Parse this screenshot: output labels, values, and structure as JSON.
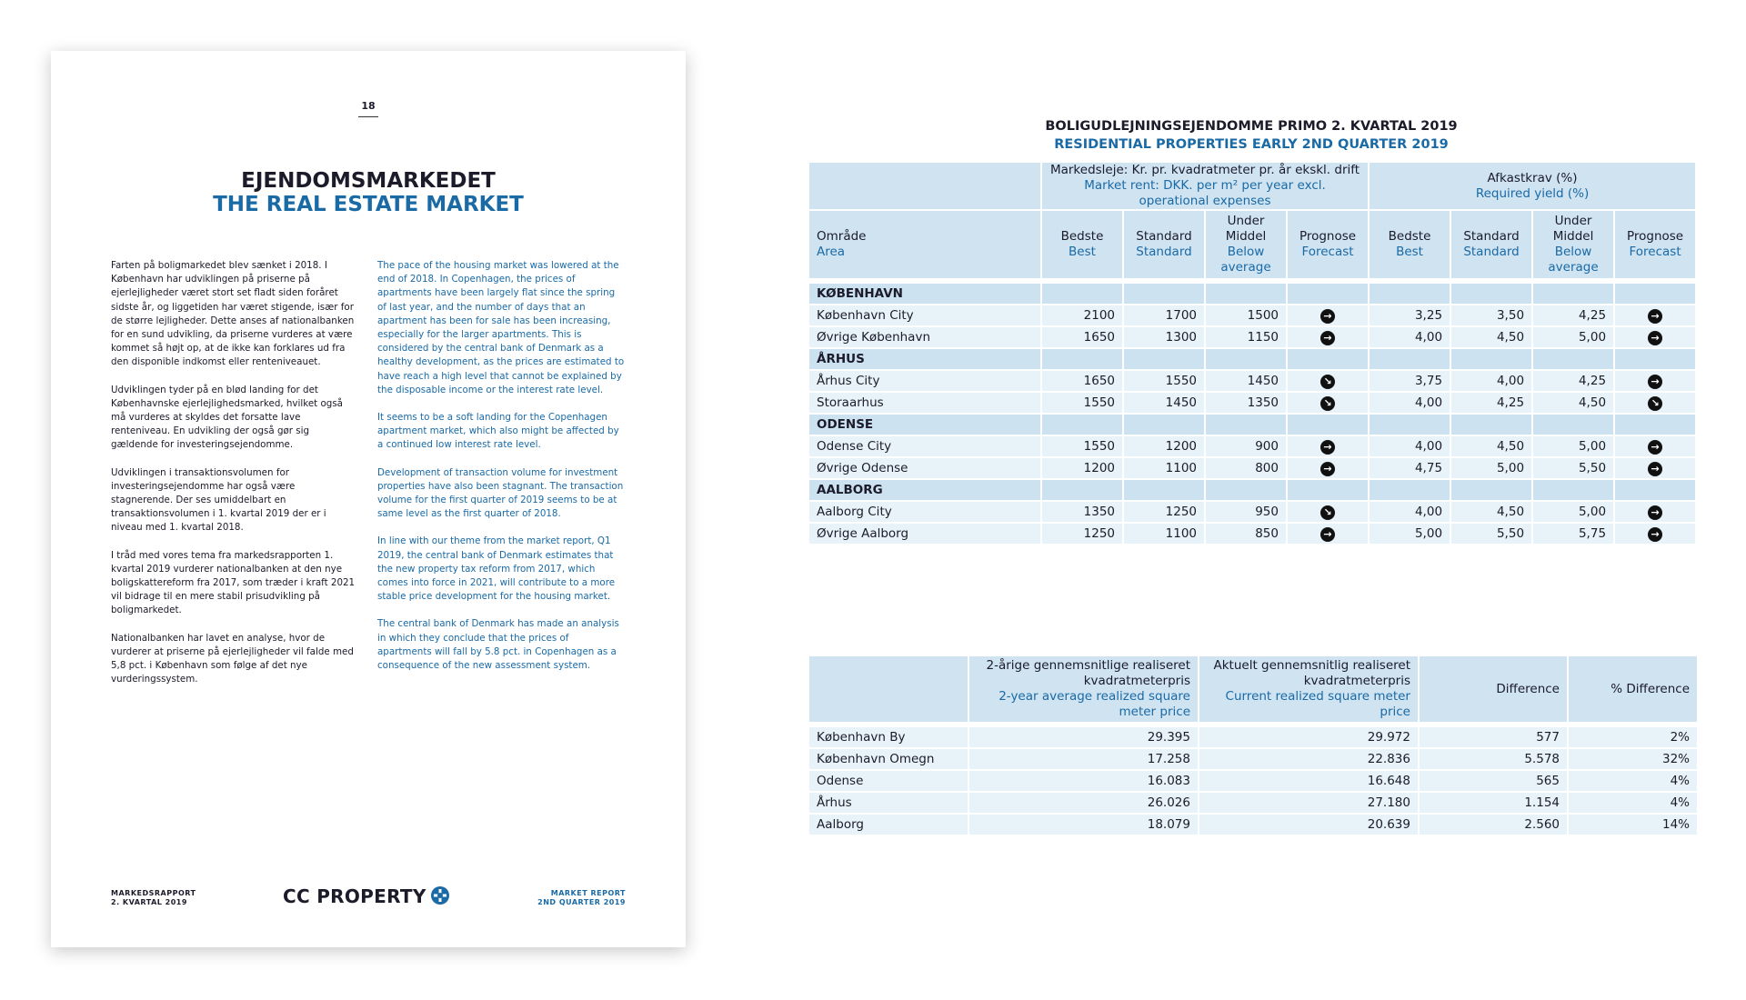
{
  "page": {
    "number": "18",
    "title": "EJENDOMSMARKEDET",
    "subtitle": "THE REAL ESTATE MARKET",
    "danish": [
      "Farten på boligmarkedet blev sænket i 2018. I København har udviklingen på priserne på ejerlejligheder været stort set fladt siden foråret sidste år, og liggetiden har været stigende, især for de større lejligheder. Dette anses af nationalbanken for en sund udvikling, da priserne vurderes at være kommet så højt op, at de ikke kan forklares ud fra den disponible indkomst eller renteniveauet.",
      "Udviklingen tyder på en blød landing for det Københavnske ejerlejlighedsmarked, hvilket også må vurderes at skyldes det forsatte lave renteniveau. En udvikling der også gør sig gældende for investeringsejendomme.",
      "Udviklingen i transaktionsvolumen for investeringsejendomme har også være stagnerende. Der ses umiddelbart en transaktionsvolumen i 1. kvartal 2019 der er i niveau med 1. kvartal 2018.",
      "I tråd med vores tema fra markedsrapporten 1. kvartal 2019 vurderer nationalbanken at den nye boligskattereform fra 2017, som træder i kraft 2021 vil bidrage til en mere stabil prisudvikling på boligmarkedet.",
      "Nationalbanken har lavet en analyse, hvor de vurderer at priserne på ejerlejligheder vil falde med 5,8 pct. i København som følge af det nye vurderingssystem."
    ],
    "english": [
      "The pace of the housing market was lowered at the end of 2018. In Copenhagen, the prices of apartments have been largely flat since the spring of last year, and the number of days that an apartment has been for sale has been increasing, especially for the larger apartments. This is considered by the central bank of Denmark as a healthy development, as the prices are estimated to have reach a high level that cannot be explained by the disposable income or the interest rate level.",
      "It seems to be a soft landing for the Copenhagen apartment market, which also might be affected by a continued low interest rate level.",
      "Development of transaction volume for investment properties have also been stagnant. The transaction volume for the first quarter of 2019 seems to be at same level as the first quarter of 2018.",
      "In line with our theme from the market report, Q1 2019, the central bank of Denmark estimates that the new property tax reform from 2017, which comes into force in 2021, will contribute to a more stable price development for the housing market.",
      "The central bank of Denmark has made an analysis in which they conclude that the prices of apartments will fall by 5.8 pct. in Copenhagen as a consequence of the new assessment system."
    ],
    "footer": {
      "left": [
        "MARKEDSRAPPORT",
        "2. KVARTAL 2019"
      ],
      "logo": "CC PROPERTY",
      "right": [
        "MARKET REPORT",
        "2ND QUARTER 2019"
      ]
    }
  },
  "table1": {
    "title": "BOLIGUDLEJNINGSEJENDOMME PRIMO 2. KVARTAL 2019",
    "subtitle": "RESIDENTIAL PROPERTIES EARLY 2ND QUARTER 2019",
    "groups": [
      {
        "da": "Markedsleje: Kr. pr. kvadratmeter pr. år ekskl. drift",
        "en": "Market rent: DKK. per m² per year excl. operational expenses"
      },
      {
        "da": "Afkastkrav (%)",
        "en": "Required yield (%)"
      }
    ],
    "columns": [
      {
        "da": "Område",
        "en": "Area"
      },
      {
        "da": "Bedste",
        "en": "Best"
      },
      {
        "da": "Standard",
        "en": "Standard"
      },
      {
        "da": "Under Middel",
        "en": "Below average"
      },
      {
        "da": "Prognose",
        "en": "Forecast"
      },
      {
        "da": "Bedste",
        "en": "Best"
      },
      {
        "da": "Standard",
        "en": "Standard"
      },
      {
        "da": "Under Middel",
        "en": "Below average"
      },
      {
        "da": "Prognose",
        "en": "Forecast"
      }
    ],
    "sections": [
      {
        "name": "KØBENHAVN",
        "rows": [
          {
            "area": "København City",
            "rent": [
              "2100",
              "1700",
              "1500"
            ],
            "rent_forecast": "→",
            "yield": [
              "3,25",
              "3,50",
              "4,25"
            ],
            "yield_forecast": "→"
          },
          {
            "area": "Øvrige København",
            "rent": [
              "1650",
              "1300",
              "1150"
            ],
            "rent_forecast": "→",
            "yield": [
              "4,00",
              "4,50",
              "5,00"
            ],
            "yield_forecast": "→"
          }
        ]
      },
      {
        "name": "ÅRHUS",
        "rows": [
          {
            "area": "Århus City",
            "rent": [
              "1650",
              "1550",
              "1450"
            ],
            "rent_forecast": "↘",
            "yield": [
              "3,75",
              "4,00",
              "4,25"
            ],
            "yield_forecast": "→"
          },
          {
            "area": "Storaarhus",
            "rent": [
              "1550",
              "1450",
              "1350"
            ],
            "rent_forecast": "↘",
            "yield": [
              "4,00",
              "4,25",
              "4,50"
            ],
            "yield_forecast": "↘"
          }
        ]
      },
      {
        "name": "ODENSE",
        "rows": [
          {
            "area": "Odense City",
            "rent": [
              "1550",
              "1200",
              "900"
            ],
            "rent_forecast": "→",
            "yield": [
              "4,00",
              "4,50",
              "5,00"
            ],
            "yield_forecast": "→"
          },
          {
            "area": "Øvrige Odense",
            "rent": [
              "1200",
              "1100",
              "800"
            ],
            "rent_forecast": "→",
            "yield": [
              "4,75",
              "5,00",
              "5,50"
            ],
            "yield_forecast": "→"
          }
        ]
      },
      {
        "name": "AALBORG",
        "rows": [
          {
            "area": "Aalborg City",
            "rent": [
              "1350",
              "1250",
              "950"
            ],
            "rent_forecast": "↘",
            "yield": [
              "4,00",
              "4,50",
              "5,00"
            ],
            "yield_forecast": "→"
          },
          {
            "area": "Øvrige Aalborg",
            "rent": [
              "1250",
              "1100",
              "850"
            ],
            "rent_forecast": "→",
            "yield": [
              "5,00",
              "5,50",
              "5,75"
            ],
            "yield_forecast": "→"
          }
        ]
      }
    ]
  },
  "table2": {
    "columns": [
      {
        "da": "2-årige gennemsnitlige realiseret kvadratmeterpris",
        "en": "2-year average realized square meter price"
      },
      {
        "da": "Aktuelt gennemsnitlig realiseret kvadratmeterpris",
        "en": "Current realized square meter price"
      },
      {
        "da": "Difference"
      },
      {
        "da": "% Difference"
      }
    ],
    "rows": [
      [
        "København By",
        "29.395",
        "29.972",
        "577",
        "2%"
      ],
      [
        "København Omegn",
        "17.258",
        "22.836",
        "5.578",
        "32%"
      ],
      [
        "Odense",
        "16.083",
        "16.648",
        "565",
        "4%"
      ],
      [
        "Århus",
        "26.026",
        "27.180",
        "1.154",
        "4%"
      ],
      [
        "Aalborg",
        "18.079",
        "20.639",
        "2.560",
        "14%"
      ]
    ]
  }
}
